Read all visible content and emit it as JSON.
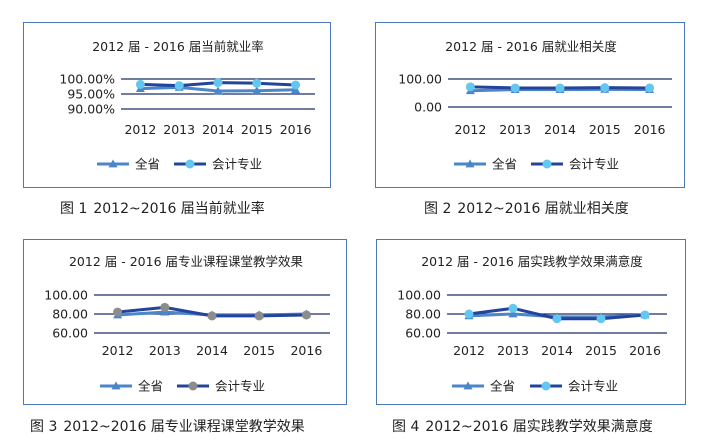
{
  "chart_data": [
    {
      "type": "line",
      "title": "2012 届 - 2016 届当前就业率",
      "categories": [
        "2012",
        "2013",
        "2014",
        "2015",
        "2016"
      ],
      "y_ticks": [
        "100.00%",
        "95.00%",
        "90.00%"
      ],
      "ylim": [
        90,
        100
      ],
      "series": [
        {
          "name": "全省",
          "values": [
            96.8,
            97.2,
            96.0,
            96.1,
            96.4
          ],
          "color": "#4a86c8",
          "marker": "triangle"
        },
        {
          "name": "会计专业",
          "values": [
            98.2,
            97.8,
            98.8,
            98.6,
            98.0
          ],
          "color": "#23449a",
          "marker_color": "#63c7ef",
          "marker": "circle"
        }
      ],
      "legend_position": "bottom",
      "caption_num": "图 1",
      "caption": "2012~2016 届当前就业率"
    },
    {
      "type": "line",
      "title": "2012 届 - 2016 届就业相关度",
      "categories": [
        "2012",
        "2013",
        "2014",
        "2015",
        "2016"
      ],
      "y_ticks": [
        "100.00",
        "0.00"
      ],
      "ylim": [
        0,
        100
      ],
      "series": [
        {
          "name": "全省",
          "values": [
            58,
            62,
            62,
            63,
            62
          ],
          "color": "#4a86c8",
          "marker": "triangle"
        },
        {
          "name": "会计专业",
          "values": [
            72,
            68,
            68,
            69,
            68
          ],
          "color": "#23449a",
          "marker_color": "#63c7ef",
          "marker": "circle"
        }
      ],
      "legend_position": "bottom",
      "caption_num": "图 2",
      "caption": "2012~2016 届就业相关度"
    },
    {
      "type": "line",
      "title": "2012 届 - 2016 届专业课程课堂教学效果",
      "categories": [
        "2012",
        "2013",
        "2014",
        "2015",
        "2016"
      ],
      "y_ticks": [
        "100.00",
        "80.00",
        "60.00"
      ],
      "ylim": [
        60,
        100
      ],
      "series": [
        {
          "name": "全省",
          "values": [
            79,
            82,
            79,
            79,
            80
          ],
          "color": "#4a86c8",
          "marker": "triangle"
        },
        {
          "name": "会计专业",
          "values": [
            82,
            87,
            78,
            78,
            79
          ],
          "color": "#23449a",
          "marker_color": "#8c8c8c",
          "marker": "circle"
        }
      ],
      "legend_position": "bottom",
      "caption_num": "图 3",
      "caption": "2012~2016 届专业课程课堂教学效果"
    },
    {
      "type": "line",
      "title": "2012 届 - 2016 届实践教学效果满意度",
      "categories": [
        "2012",
        "2013",
        "2014",
        "2015",
        "2016"
      ],
      "y_ticks": [
        "100.00",
        "80.00",
        "60.00"
      ],
      "ylim": [
        60,
        100
      ],
      "series": [
        {
          "name": "全省",
          "values": [
            78,
            80,
            77,
            77,
            79
          ],
          "color": "#4a86c8",
          "marker": "triangle"
        },
        {
          "name": "会计专业",
          "values": [
            80,
            86,
            75,
            75,
            79
          ],
          "color": "#23449a",
          "marker_color": "#63c7ef",
          "marker": "circle"
        }
      ],
      "legend_position": "bottom",
      "caption_num": "图 4",
      "caption": "2012~2016 届实践教学效果满意度"
    }
  ]
}
